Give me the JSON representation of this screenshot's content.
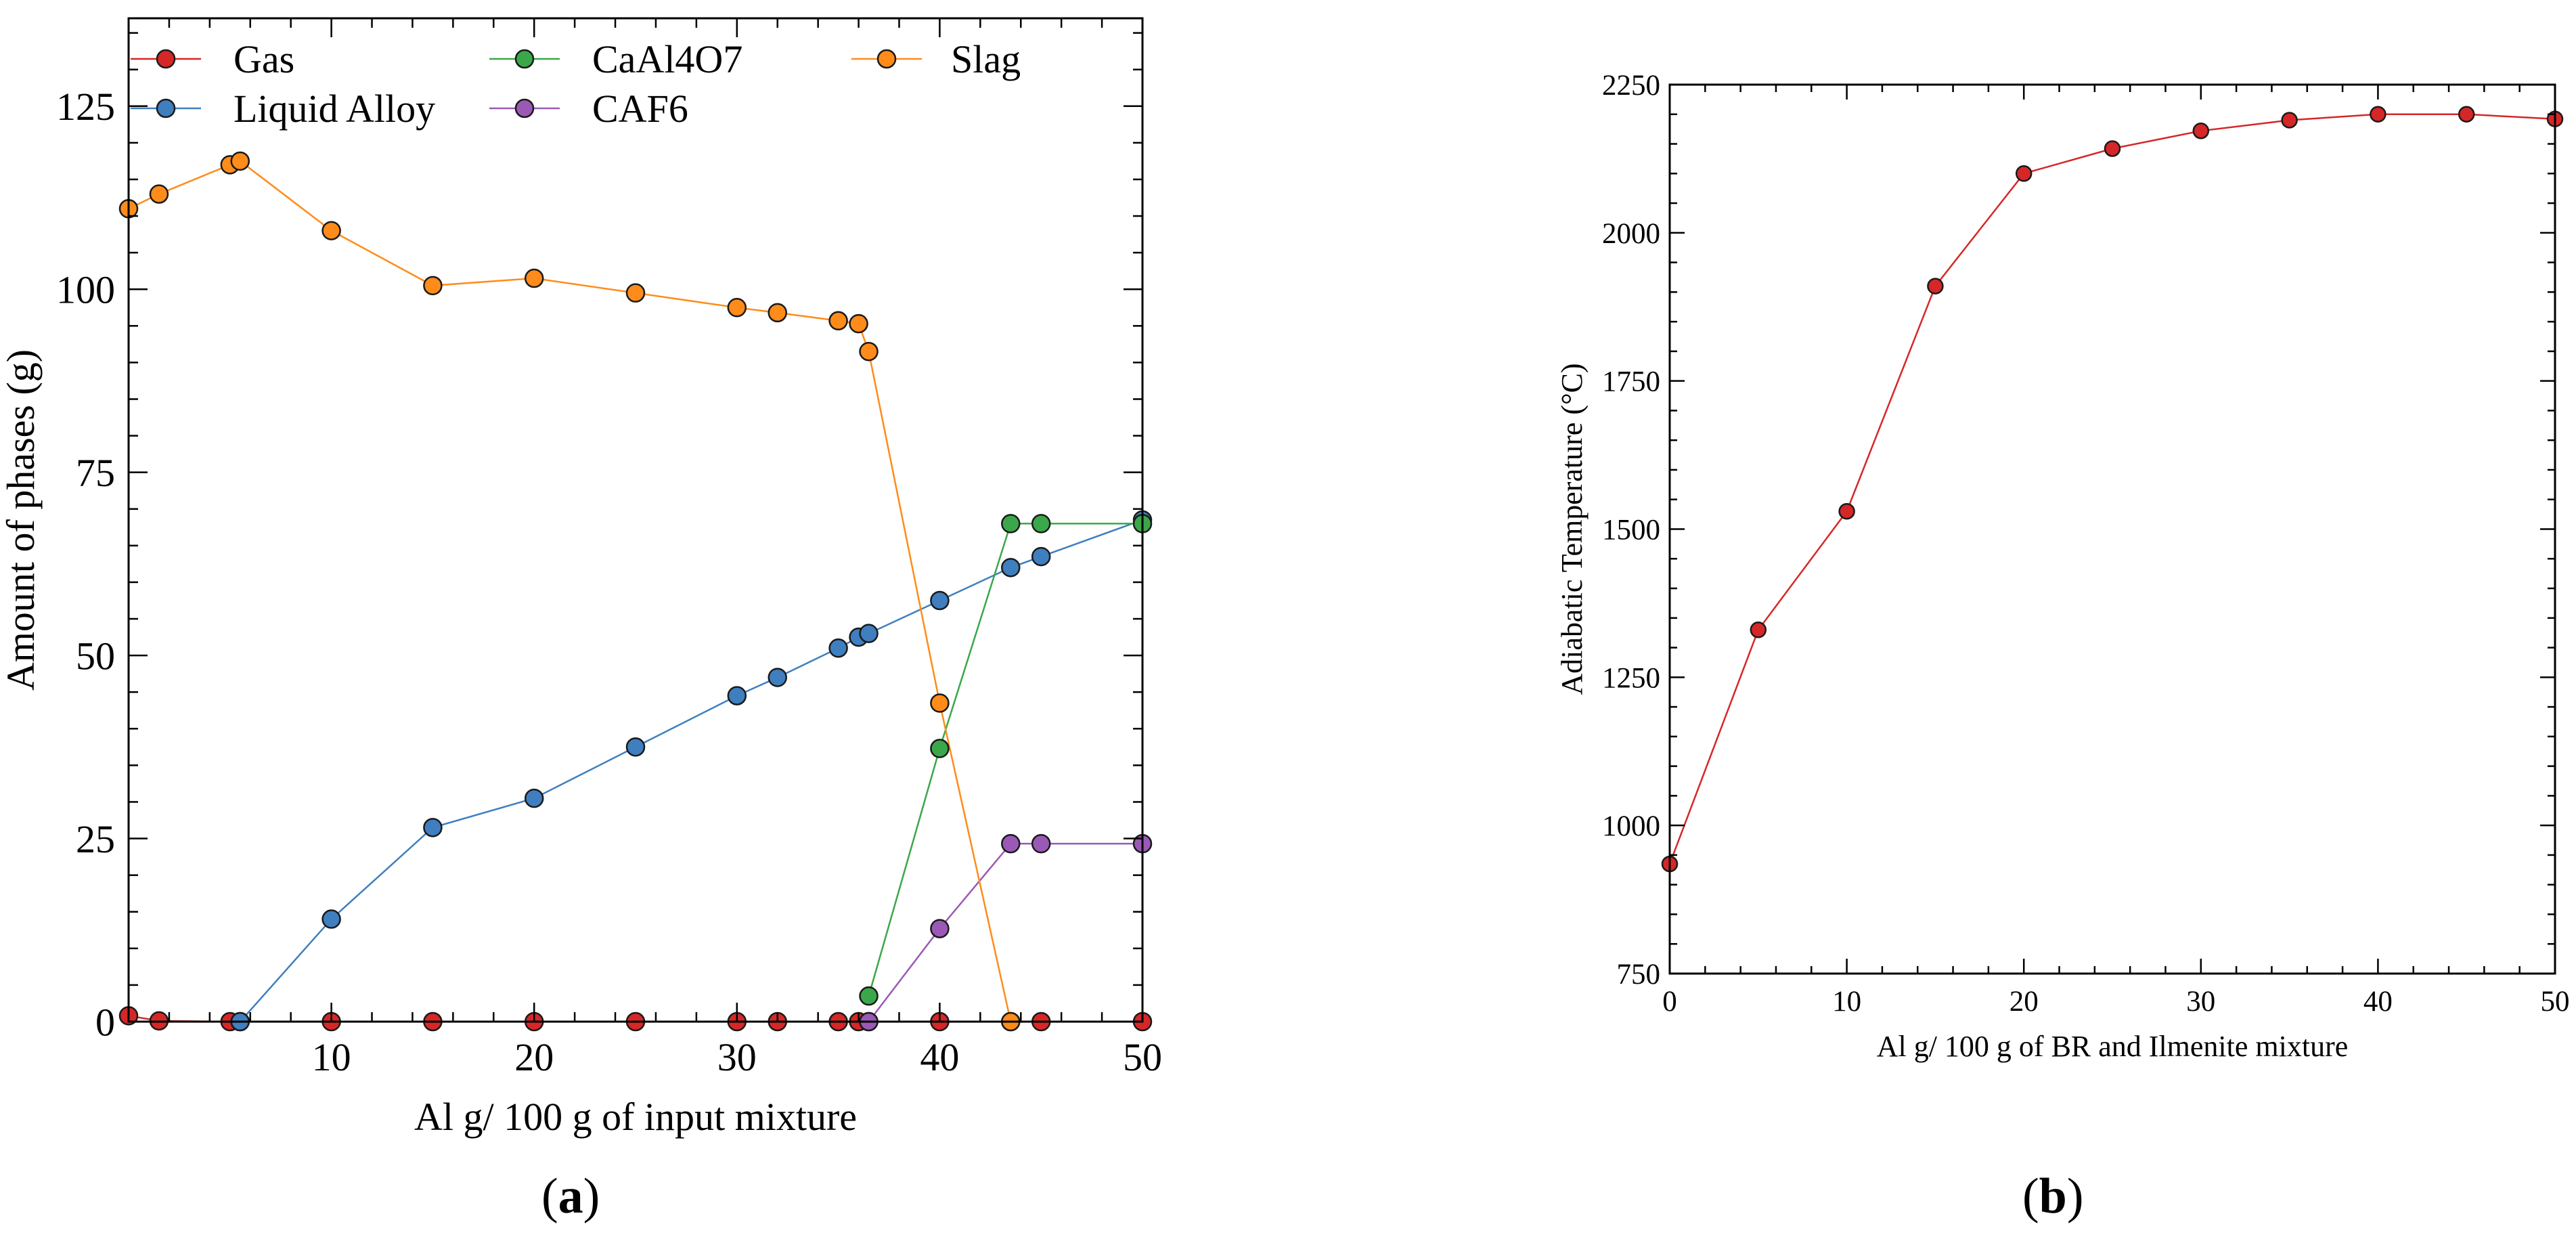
{
  "captions": {
    "a_open": "(",
    "a_letter": "a",
    "a_close": ")",
    "b_open": "(",
    "b_letter": "b",
    "b_close": ")"
  },
  "chart_data": [
    {
      "id": "a",
      "type": "line",
      "title": "",
      "xlabel": "Al g/ 100 g of input mixture",
      "ylabel": "Amount of phases (g)",
      "xlim": [
        0,
        50
      ],
      "ylim": [
        0,
        137
      ],
      "xticks": [
        10,
        20,
        30,
        40,
        50
      ],
      "xtick_labels": [
        "10",
        "20",
        "30",
        "40",
        "50"
      ],
      "yticks": [
        0,
        25,
        50,
        75,
        100,
        125
      ],
      "ytick_labels": [
        "0",
        "25",
        "50",
        "75",
        "100",
        "125"
      ],
      "legend_location": "top",
      "series": [
        {
          "name": "Gas",
          "color": "#d62728",
          "x": [
            0,
            1.5,
            5,
            5.5,
            10,
            15,
            20,
            25,
            30,
            32,
            35,
            36,
            36.5,
            40,
            43.5,
            45,
            50
          ],
          "y": [
            0.8,
            0.1,
            0,
            0,
            0,
            0,
            0,
            0,
            0,
            0,
            0,
            0,
            0,
            0,
            0,
            0,
            0
          ]
        },
        {
          "name": "Liquid Alloy",
          "color": "#3f7fbf",
          "x": [
            5.5,
            10,
            15,
            20,
            25,
            30,
            32,
            35,
            36,
            36.5,
            40,
            43.5,
            45,
            50
          ],
          "y": [
            0,
            14,
            26.5,
            30.5,
            37.5,
            44.5,
            47,
            51,
            52.5,
            53,
            57.5,
            62,
            63.5,
            68.5
          ]
        },
        {
          "name": "CaAl4O7",
          "color": "#3aa84a",
          "x": [
            36.5,
            40,
            43.5,
            45,
            50
          ],
          "y": [
            3.5,
            37.3,
            68,
            68,
            68
          ]
        },
        {
          "name": "CAF6",
          "color": "#9b59b6",
          "x": [
            36.5,
            40,
            43.5,
            45,
            50
          ],
          "y": [
            0,
            12.7,
            24.3,
            24.3,
            24.3
          ]
        },
        {
          "name": "Slag",
          "color": "#ff8c1a",
          "x": [
            0,
            1.5,
            5,
            5.5,
            10,
            15,
            20,
            25,
            30,
            32,
            35,
            36,
            36.5,
            40,
            43.5
          ],
          "y": [
            111,
            113,
            117,
            117.5,
            108,
            100.5,
            101.5,
            99.5,
            97.5,
            96.8,
            95.7,
            95.3,
            91.5,
            43.5,
            0
          ]
        }
      ]
    },
    {
      "id": "b",
      "type": "line",
      "title": "",
      "xlabel": "Al g/ 100 g of BR and Ilmenite mixture",
      "ylabel": "Adiabatic Temperature (°C)",
      "xlim": [
        0,
        50
      ],
      "ylim": [
        750,
        2250
      ],
      "xticks": [
        0,
        10,
        20,
        30,
        40,
        50
      ],
      "xtick_labels": [
        "0",
        "10",
        "20",
        "30",
        "40",
        "50"
      ],
      "yticks": [
        750,
        1000,
        1250,
        1500,
        1750,
        2000,
        2250
      ],
      "ytick_labels": [
        "750",
        "1000",
        "1250",
        "1500",
        "1750",
        "2000",
        "2250"
      ],
      "series": [
        {
          "name": "Adiabatic Temperature",
          "color": "#d62728",
          "x": [
            0,
            5,
            10,
            15,
            20,
            25,
            30,
            35,
            40,
            45,
            50
          ],
          "y": [
            935,
            1330,
            1530,
            1910,
            2100,
            2142,
            2172,
            2190,
            2200,
            2200,
            2192
          ]
        }
      ]
    }
  ]
}
